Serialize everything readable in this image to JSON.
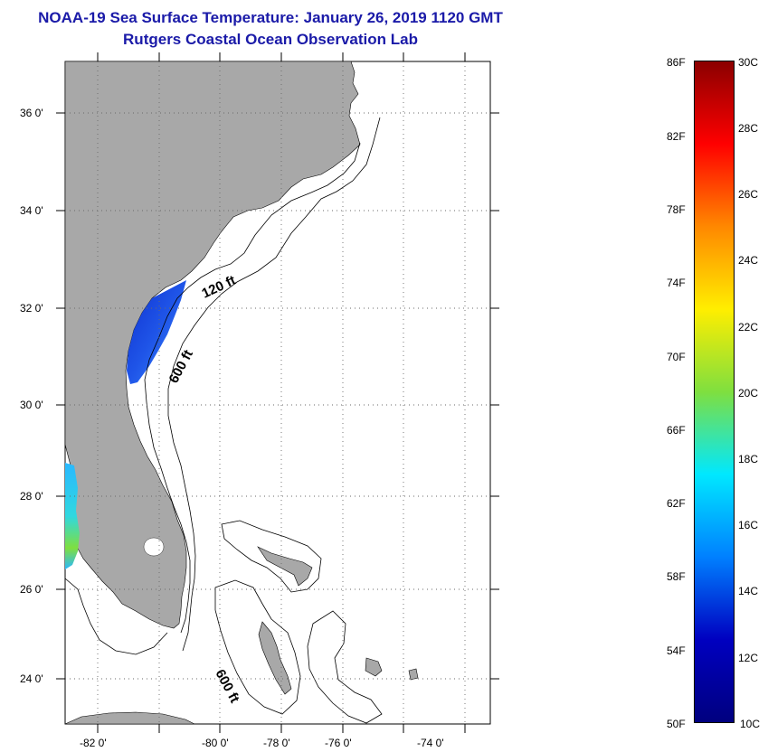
{
  "header": {
    "title_line1": "NOAA-19 Sea Surface Temperature:  January 26, 2019 1120 GMT",
    "title_line2": "Rutgers Coastal Ocean Observation Lab"
  },
  "map": {
    "latitude_labels": [
      "36 0'",
      "34 0'",
      "32 0'",
      "30 0'",
      "28 0'",
      "26 0'",
      "24 0'"
    ],
    "longitude_labels": [
      "-82 0'",
      "-80 0'",
      "-78 0'",
      "-76 0'",
      "-74 0'"
    ],
    "contour_labels": [
      "120 ft",
      "600 ft",
      "600 ft"
    ],
    "colors": {
      "land": "#a8a8a8",
      "ocean_no_data": "#ffffff",
      "water_cold": "#1f4fe0"
    }
  },
  "colorbar": {
    "fahrenheit_labels": [
      "86F",
      "82F",
      "78F",
      "74F",
      "70F",
      "66F",
      "62F",
      "58F",
      "54F",
      "50F"
    ],
    "celsius_labels": [
      "30C",
      "28C",
      "26C",
      "24C",
      "22C",
      "20C",
      "18C",
      "16C",
      "14C",
      "12C",
      "10C"
    ],
    "colors": [
      "#8b0000",
      "#ff0000",
      "#ff8800",
      "#ffee00",
      "#7fdf3f",
      "#00e8ff",
      "#0080ff",
      "#0000c0",
      "#00007f"
    ]
  }
}
